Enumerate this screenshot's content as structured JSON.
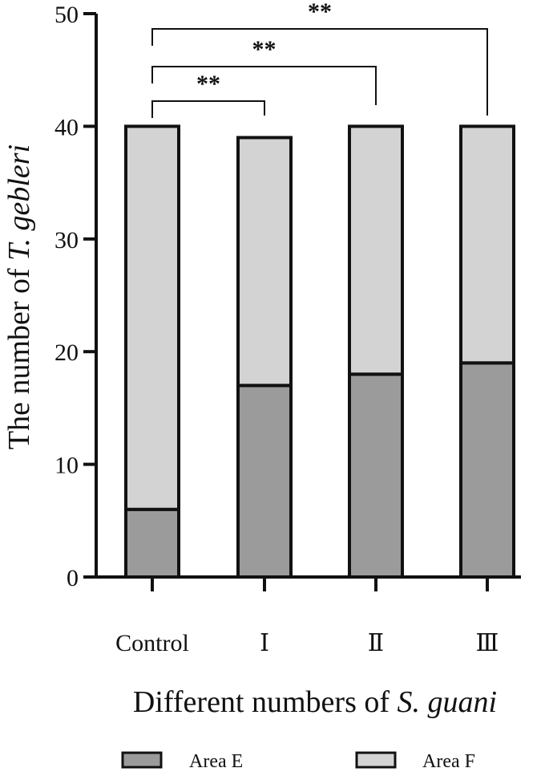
{
  "chart_data": {
    "type": "bar",
    "stacked": true,
    "categories": [
      "Control",
      "Ⅰ",
      "Ⅱ",
      "Ⅲ"
    ],
    "series": [
      {
        "name": "Area E",
        "values": [
          6,
          17,
          18,
          19
        ],
        "color": "#9b9b9b"
      },
      {
        "name": "Area F",
        "values": [
          34,
          22,
          22,
          21
        ],
        "color": "#d3d3d3"
      }
    ],
    "ylabel": {
      "prefix": "The number of ",
      "italic": "T. gebleri"
    },
    "xlabel": {
      "prefix": "Different numbers of ",
      "italic": "S. guani"
    },
    "ylim": [
      0,
      50
    ],
    "yticks": [
      0,
      10,
      20,
      30,
      40,
      50
    ],
    "grid": false,
    "legend_position": "bottom",
    "significance": [
      {
        "from": "Control",
        "to": "Ⅰ",
        "label": "**"
      },
      {
        "from": "Control",
        "to": "Ⅱ",
        "label": "**"
      },
      {
        "from": "Control",
        "to": "Ⅲ",
        "label": "**"
      }
    ]
  }
}
